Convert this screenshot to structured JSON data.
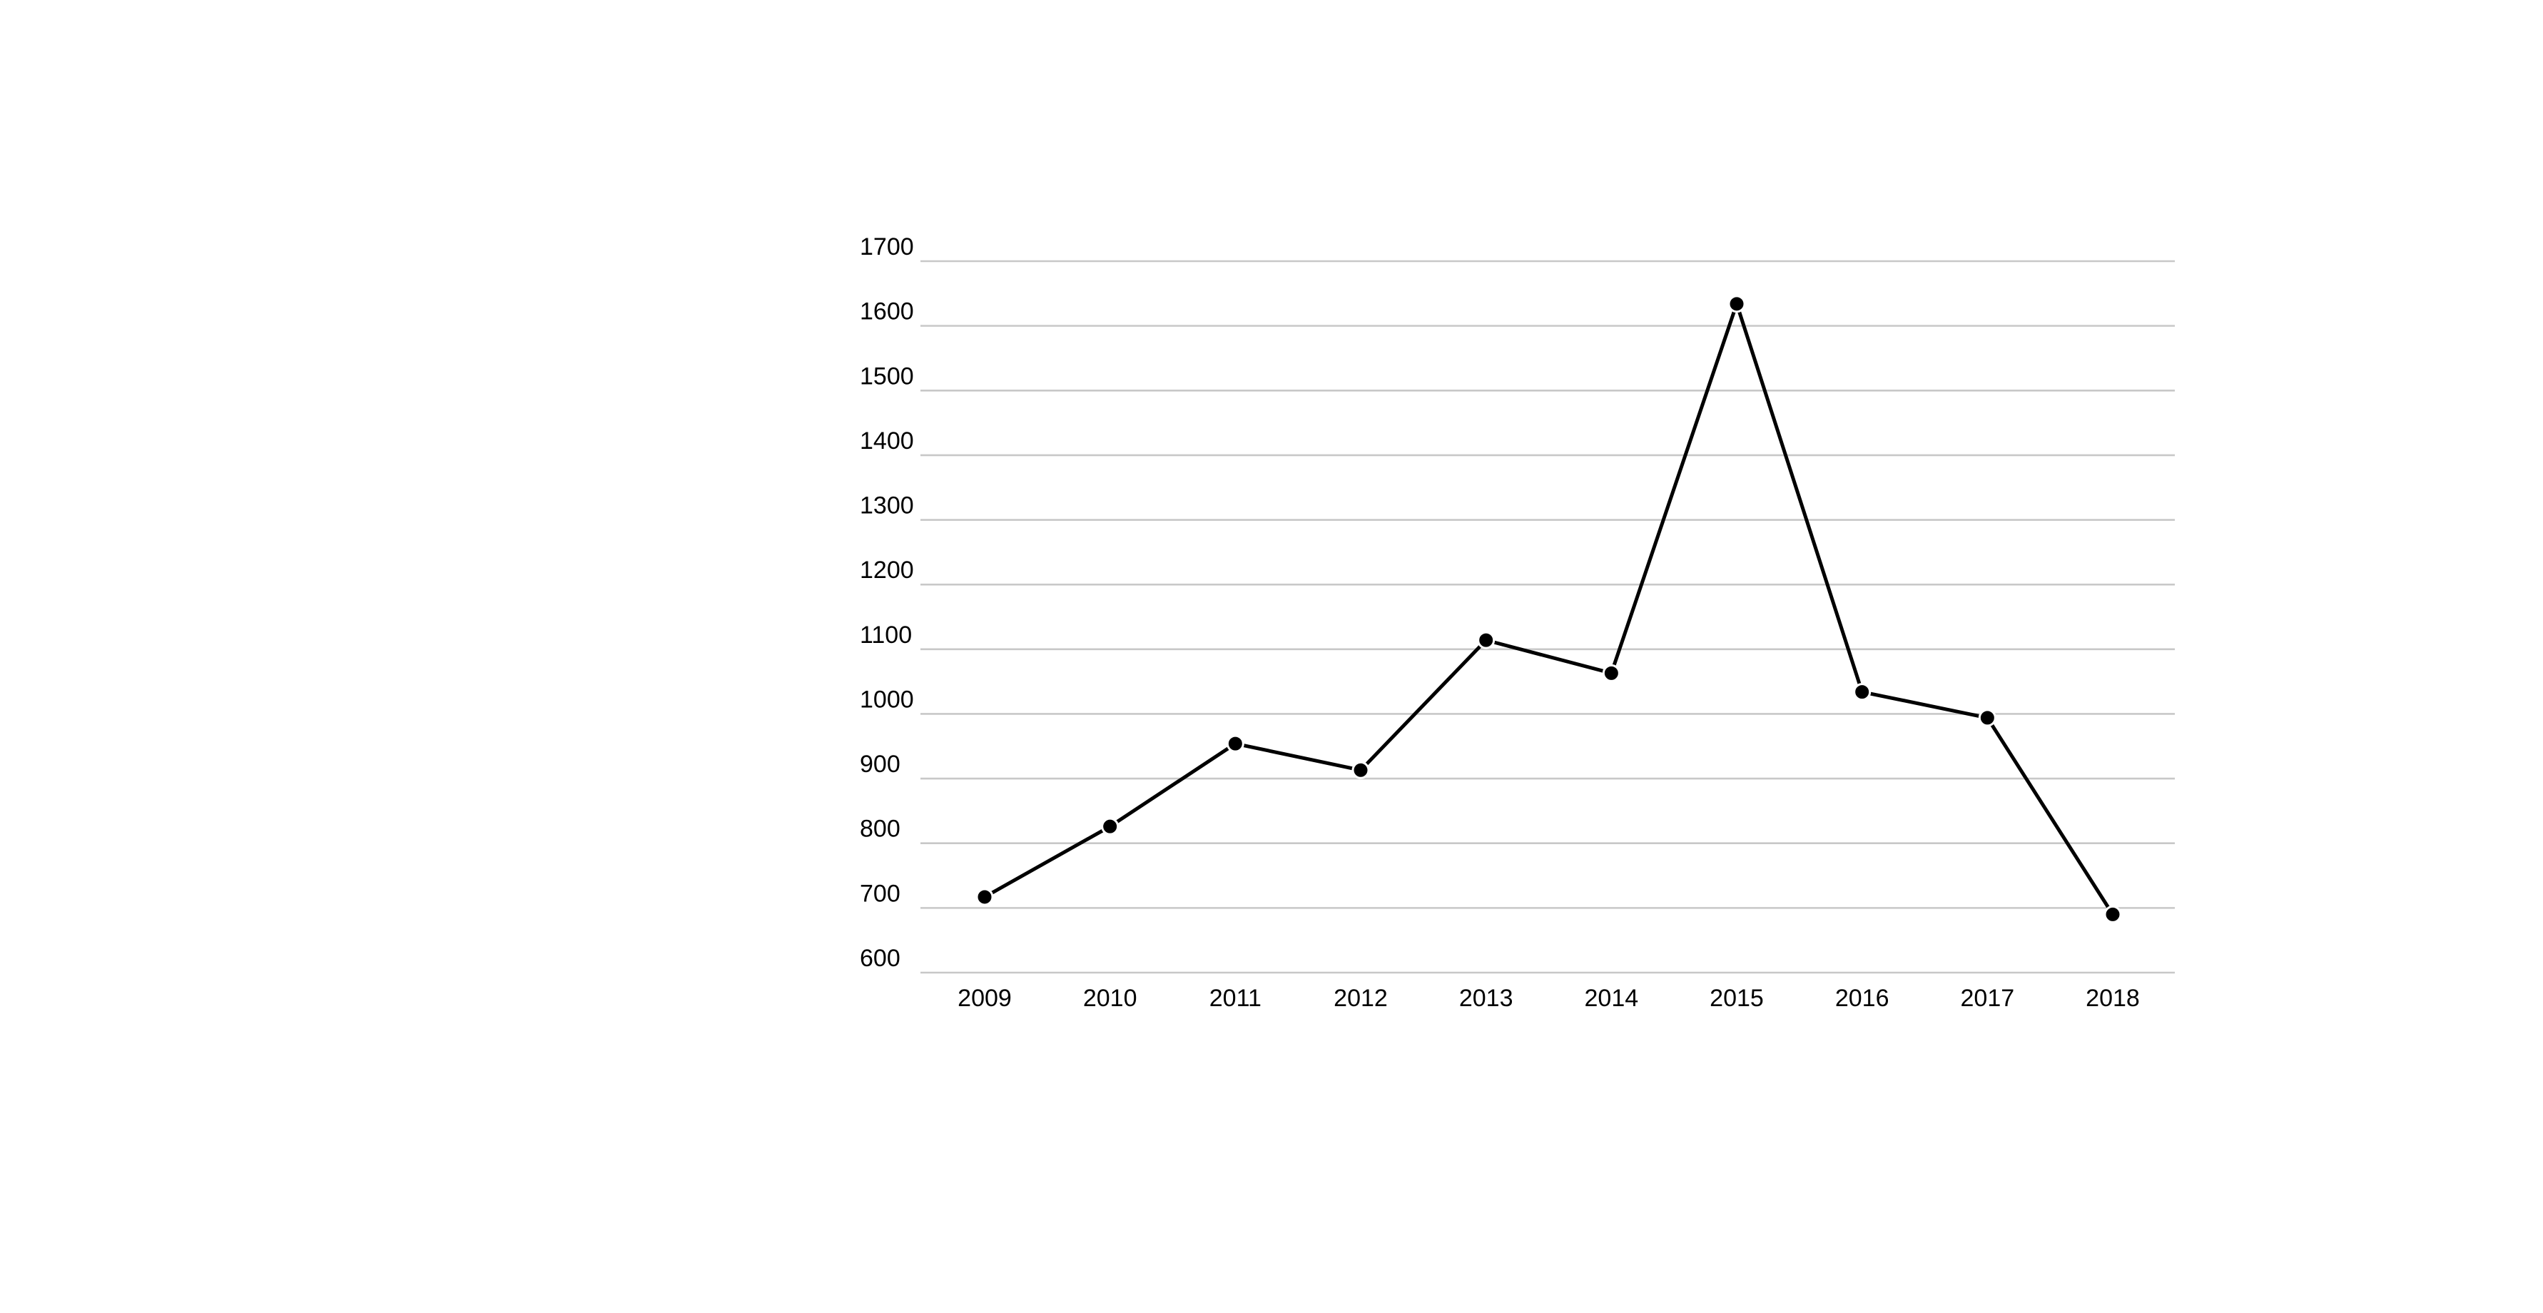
{
  "chart_data": {
    "type": "line",
    "title": "",
    "xlabel": "",
    "ylabel": "",
    "categories": [
      "2009",
      "2010",
      "2011",
      "2012",
      "2013",
      "2014",
      "2015",
      "2016",
      "2017",
      "2018"
    ],
    "series": [
      {
        "values": [
          717,
          826,
          954,
          913,
          1114,
          1063,
          1634,
          1034,
          994,
          690
        ]
      }
    ],
    "ylim": [
      600,
      1700
    ],
    "yticks": [
      600,
      700,
      800,
      900,
      1000,
      1100,
      1200,
      1300,
      1400,
      1500,
      1600,
      1700
    ],
    "grid": true,
    "legend": "none",
    "colors": {
      "line": "#000000",
      "point": "#000000",
      "grid": "#c8c8c8",
      "background": "#ffffff"
    }
  }
}
